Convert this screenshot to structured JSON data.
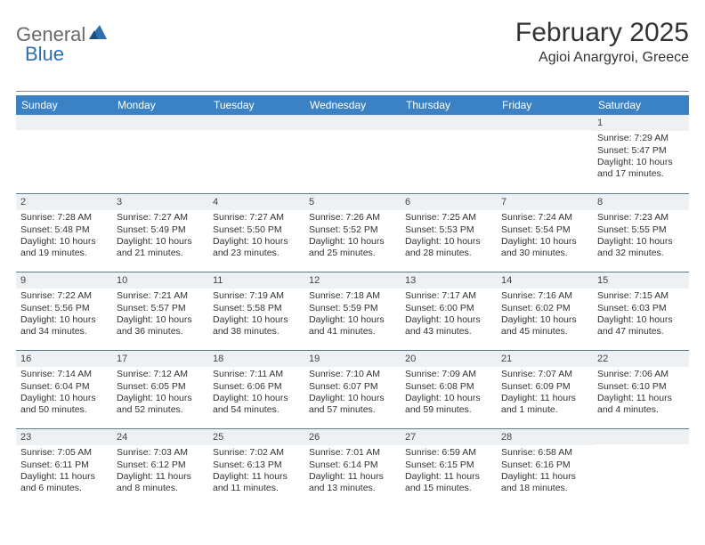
{
  "logo": {
    "general": "General",
    "blue": "Blue"
  },
  "title": "February 2025",
  "location": "Agioi Anargyroi, Greece",
  "colors": {
    "header_bg": "#3b82c4",
    "header_text": "#ffffff",
    "daynum_bg": "#eef1f4",
    "divider": "#888888",
    "cell_border": "#5a7a9a",
    "logo_gray": "#6a6a6a",
    "logo_blue": "#2d6fb3"
  },
  "weekdays": [
    "Sunday",
    "Monday",
    "Tuesday",
    "Wednesday",
    "Thursday",
    "Friday",
    "Saturday"
  ],
  "weeks": [
    [
      null,
      null,
      null,
      null,
      null,
      null,
      {
        "n": "1",
        "sr": "Sunrise: 7:29 AM",
        "ss": "Sunset: 5:47 PM",
        "d1": "Daylight: 10 hours",
        "d2": "and 17 minutes."
      }
    ],
    [
      {
        "n": "2",
        "sr": "Sunrise: 7:28 AM",
        "ss": "Sunset: 5:48 PM",
        "d1": "Daylight: 10 hours",
        "d2": "and 19 minutes."
      },
      {
        "n": "3",
        "sr": "Sunrise: 7:27 AM",
        "ss": "Sunset: 5:49 PM",
        "d1": "Daylight: 10 hours",
        "d2": "and 21 minutes."
      },
      {
        "n": "4",
        "sr": "Sunrise: 7:27 AM",
        "ss": "Sunset: 5:50 PM",
        "d1": "Daylight: 10 hours",
        "d2": "and 23 minutes."
      },
      {
        "n": "5",
        "sr": "Sunrise: 7:26 AM",
        "ss": "Sunset: 5:52 PM",
        "d1": "Daylight: 10 hours",
        "d2": "and 25 minutes."
      },
      {
        "n": "6",
        "sr": "Sunrise: 7:25 AM",
        "ss": "Sunset: 5:53 PM",
        "d1": "Daylight: 10 hours",
        "d2": "and 28 minutes."
      },
      {
        "n": "7",
        "sr": "Sunrise: 7:24 AM",
        "ss": "Sunset: 5:54 PM",
        "d1": "Daylight: 10 hours",
        "d2": "and 30 minutes."
      },
      {
        "n": "8",
        "sr": "Sunrise: 7:23 AM",
        "ss": "Sunset: 5:55 PM",
        "d1": "Daylight: 10 hours",
        "d2": "and 32 minutes."
      }
    ],
    [
      {
        "n": "9",
        "sr": "Sunrise: 7:22 AM",
        "ss": "Sunset: 5:56 PM",
        "d1": "Daylight: 10 hours",
        "d2": "and 34 minutes."
      },
      {
        "n": "10",
        "sr": "Sunrise: 7:21 AM",
        "ss": "Sunset: 5:57 PM",
        "d1": "Daylight: 10 hours",
        "d2": "and 36 minutes."
      },
      {
        "n": "11",
        "sr": "Sunrise: 7:19 AM",
        "ss": "Sunset: 5:58 PM",
        "d1": "Daylight: 10 hours",
        "d2": "and 38 minutes."
      },
      {
        "n": "12",
        "sr": "Sunrise: 7:18 AM",
        "ss": "Sunset: 5:59 PM",
        "d1": "Daylight: 10 hours",
        "d2": "and 41 minutes."
      },
      {
        "n": "13",
        "sr": "Sunrise: 7:17 AM",
        "ss": "Sunset: 6:00 PM",
        "d1": "Daylight: 10 hours",
        "d2": "and 43 minutes."
      },
      {
        "n": "14",
        "sr": "Sunrise: 7:16 AM",
        "ss": "Sunset: 6:02 PM",
        "d1": "Daylight: 10 hours",
        "d2": "and 45 minutes."
      },
      {
        "n": "15",
        "sr": "Sunrise: 7:15 AM",
        "ss": "Sunset: 6:03 PM",
        "d1": "Daylight: 10 hours",
        "d2": "and 47 minutes."
      }
    ],
    [
      {
        "n": "16",
        "sr": "Sunrise: 7:14 AM",
        "ss": "Sunset: 6:04 PM",
        "d1": "Daylight: 10 hours",
        "d2": "and 50 minutes."
      },
      {
        "n": "17",
        "sr": "Sunrise: 7:12 AM",
        "ss": "Sunset: 6:05 PM",
        "d1": "Daylight: 10 hours",
        "d2": "and 52 minutes."
      },
      {
        "n": "18",
        "sr": "Sunrise: 7:11 AM",
        "ss": "Sunset: 6:06 PM",
        "d1": "Daylight: 10 hours",
        "d2": "and 54 minutes."
      },
      {
        "n": "19",
        "sr": "Sunrise: 7:10 AM",
        "ss": "Sunset: 6:07 PM",
        "d1": "Daylight: 10 hours",
        "d2": "and 57 minutes."
      },
      {
        "n": "20",
        "sr": "Sunrise: 7:09 AM",
        "ss": "Sunset: 6:08 PM",
        "d1": "Daylight: 10 hours",
        "d2": "and 59 minutes."
      },
      {
        "n": "21",
        "sr": "Sunrise: 7:07 AM",
        "ss": "Sunset: 6:09 PM",
        "d1": "Daylight: 11 hours",
        "d2": "and 1 minute."
      },
      {
        "n": "22",
        "sr": "Sunrise: 7:06 AM",
        "ss": "Sunset: 6:10 PM",
        "d1": "Daylight: 11 hours",
        "d2": "and 4 minutes."
      }
    ],
    [
      {
        "n": "23",
        "sr": "Sunrise: 7:05 AM",
        "ss": "Sunset: 6:11 PM",
        "d1": "Daylight: 11 hours",
        "d2": "and 6 minutes."
      },
      {
        "n": "24",
        "sr": "Sunrise: 7:03 AM",
        "ss": "Sunset: 6:12 PM",
        "d1": "Daylight: 11 hours",
        "d2": "and 8 minutes."
      },
      {
        "n": "25",
        "sr": "Sunrise: 7:02 AM",
        "ss": "Sunset: 6:13 PM",
        "d1": "Daylight: 11 hours",
        "d2": "and 11 minutes."
      },
      {
        "n": "26",
        "sr": "Sunrise: 7:01 AM",
        "ss": "Sunset: 6:14 PM",
        "d1": "Daylight: 11 hours",
        "d2": "and 13 minutes."
      },
      {
        "n": "27",
        "sr": "Sunrise: 6:59 AM",
        "ss": "Sunset: 6:15 PM",
        "d1": "Daylight: 11 hours",
        "d2": "and 15 minutes."
      },
      {
        "n": "28",
        "sr": "Sunrise: 6:58 AM",
        "ss": "Sunset: 6:16 PM",
        "d1": "Daylight: 11 hours",
        "d2": "and 18 minutes."
      },
      null
    ]
  ]
}
